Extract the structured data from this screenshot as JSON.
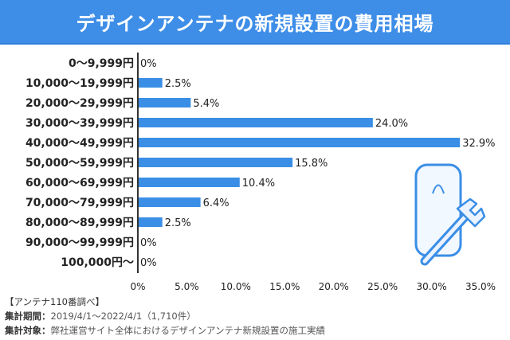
{
  "title": "デザインアンテナの新規設置の費用相場",
  "chart_data": {
    "type": "bar",
    "orientation": "horizontal",
    "categories": [
      "0〜9,999円",
      "10,000〜19,999円",
      "20,000〜29,999円",
      "30,000〜39,999円",
      "40,000〜49,999円",
      "50,000〜59,999円",
      "60,000〜69,999円",
      "70,000〜79,999円",
      "80,000〜89,999円",
      "90,000〜99,999円",
      "100,000円〜"
    ],
    "values": [
      0,
      2.5,
      5.4,
      24.0,
      32.9,
      15.8,
      10.4,
      6.4,
      2.5,
      0,
      0
    ],
    "value_labels": [
      "0%",
      "2.5%",
      "5.4%",
      "24.0%",
      "32.9%",
      "15.8%",
      "10.4%",
      "6.4%",
      "2.5%",
      "0%",
      "0%"
    ],
    "xlim": [
      0,
      35
    ],
    "x_ticks": [
      "0%",
      "5.0%",
      "10.0%",
      "15.0%",
      "20.0%",
      "25.0%",
      "30.0%",
      "35.0%"
    ],
    "bar_color": "#3a8ee6",
    "grid": false
  },
  "footer": {
    "credit": "【アンテナ110番調べ】",
    "period_label": "集計期間：",
    "period_value": "2019/4/1〜2022/4/1（1,710件）",
    "target_label": "集計対象：",
    "target_value": "弊社運営サイト全体におけるデザインアンテナ新規設置の施工実績"
  },
  "colors": {
    "banner": "#3e8ee8",
    "bar": "#3a8ee6",
    "axis": "#333333"
  },
  "illustration": "design-antenna-with-wrench-icon"
}
